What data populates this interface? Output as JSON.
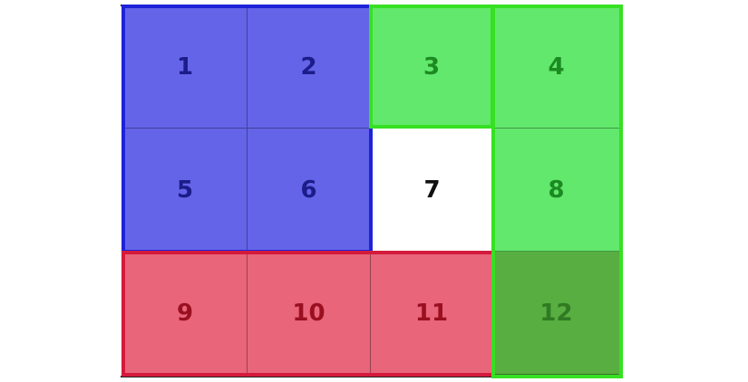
{
  "colors": {
    "blue_fill": "#6464e8",
    "blue_border": "#1e22d8",
    "blue_text": "#1c1c8a",
    "green_fill": "#62e86c",
    "green_border": "#36e022",
    "green_text": "#1c8a22",
    "red_fill": "#e8657a",
    "red_border": "#d41a3c",
    "red_text": "#9a1020",
    "dark_green_fill": "#58ae40",
    "dark_green_text": "#2f7a22",
    "white_fill": "#ffffff",
    "white_text": "#111111"
  },
  "cells": [
    {
      "label": "1",
      "group": "blue"
    },
    {
      "label": "2",
      "group": "blue"
    },
    {
      "label": "3",
      "group": "green"
    },
    {
      "label": "4",
      "group": "green"
    },
    {
      "label": "5",
      "group": "blue"
    },
    {
      "label": "6",
      "group": "blue"
    },
    {
      "label": "7",
      "group": "white"
    },
    {
      "label": "8",
      "group": "green"
    },
    {
      "label": "9",
      "group": "red"
    },
    {
      "label": "10",
      "group": "red"
    },
    {
      "label": "11",
      "group": "red"
    },
    {
      "label": "12",
      "group": "dark_green"
    }
  ]
}
